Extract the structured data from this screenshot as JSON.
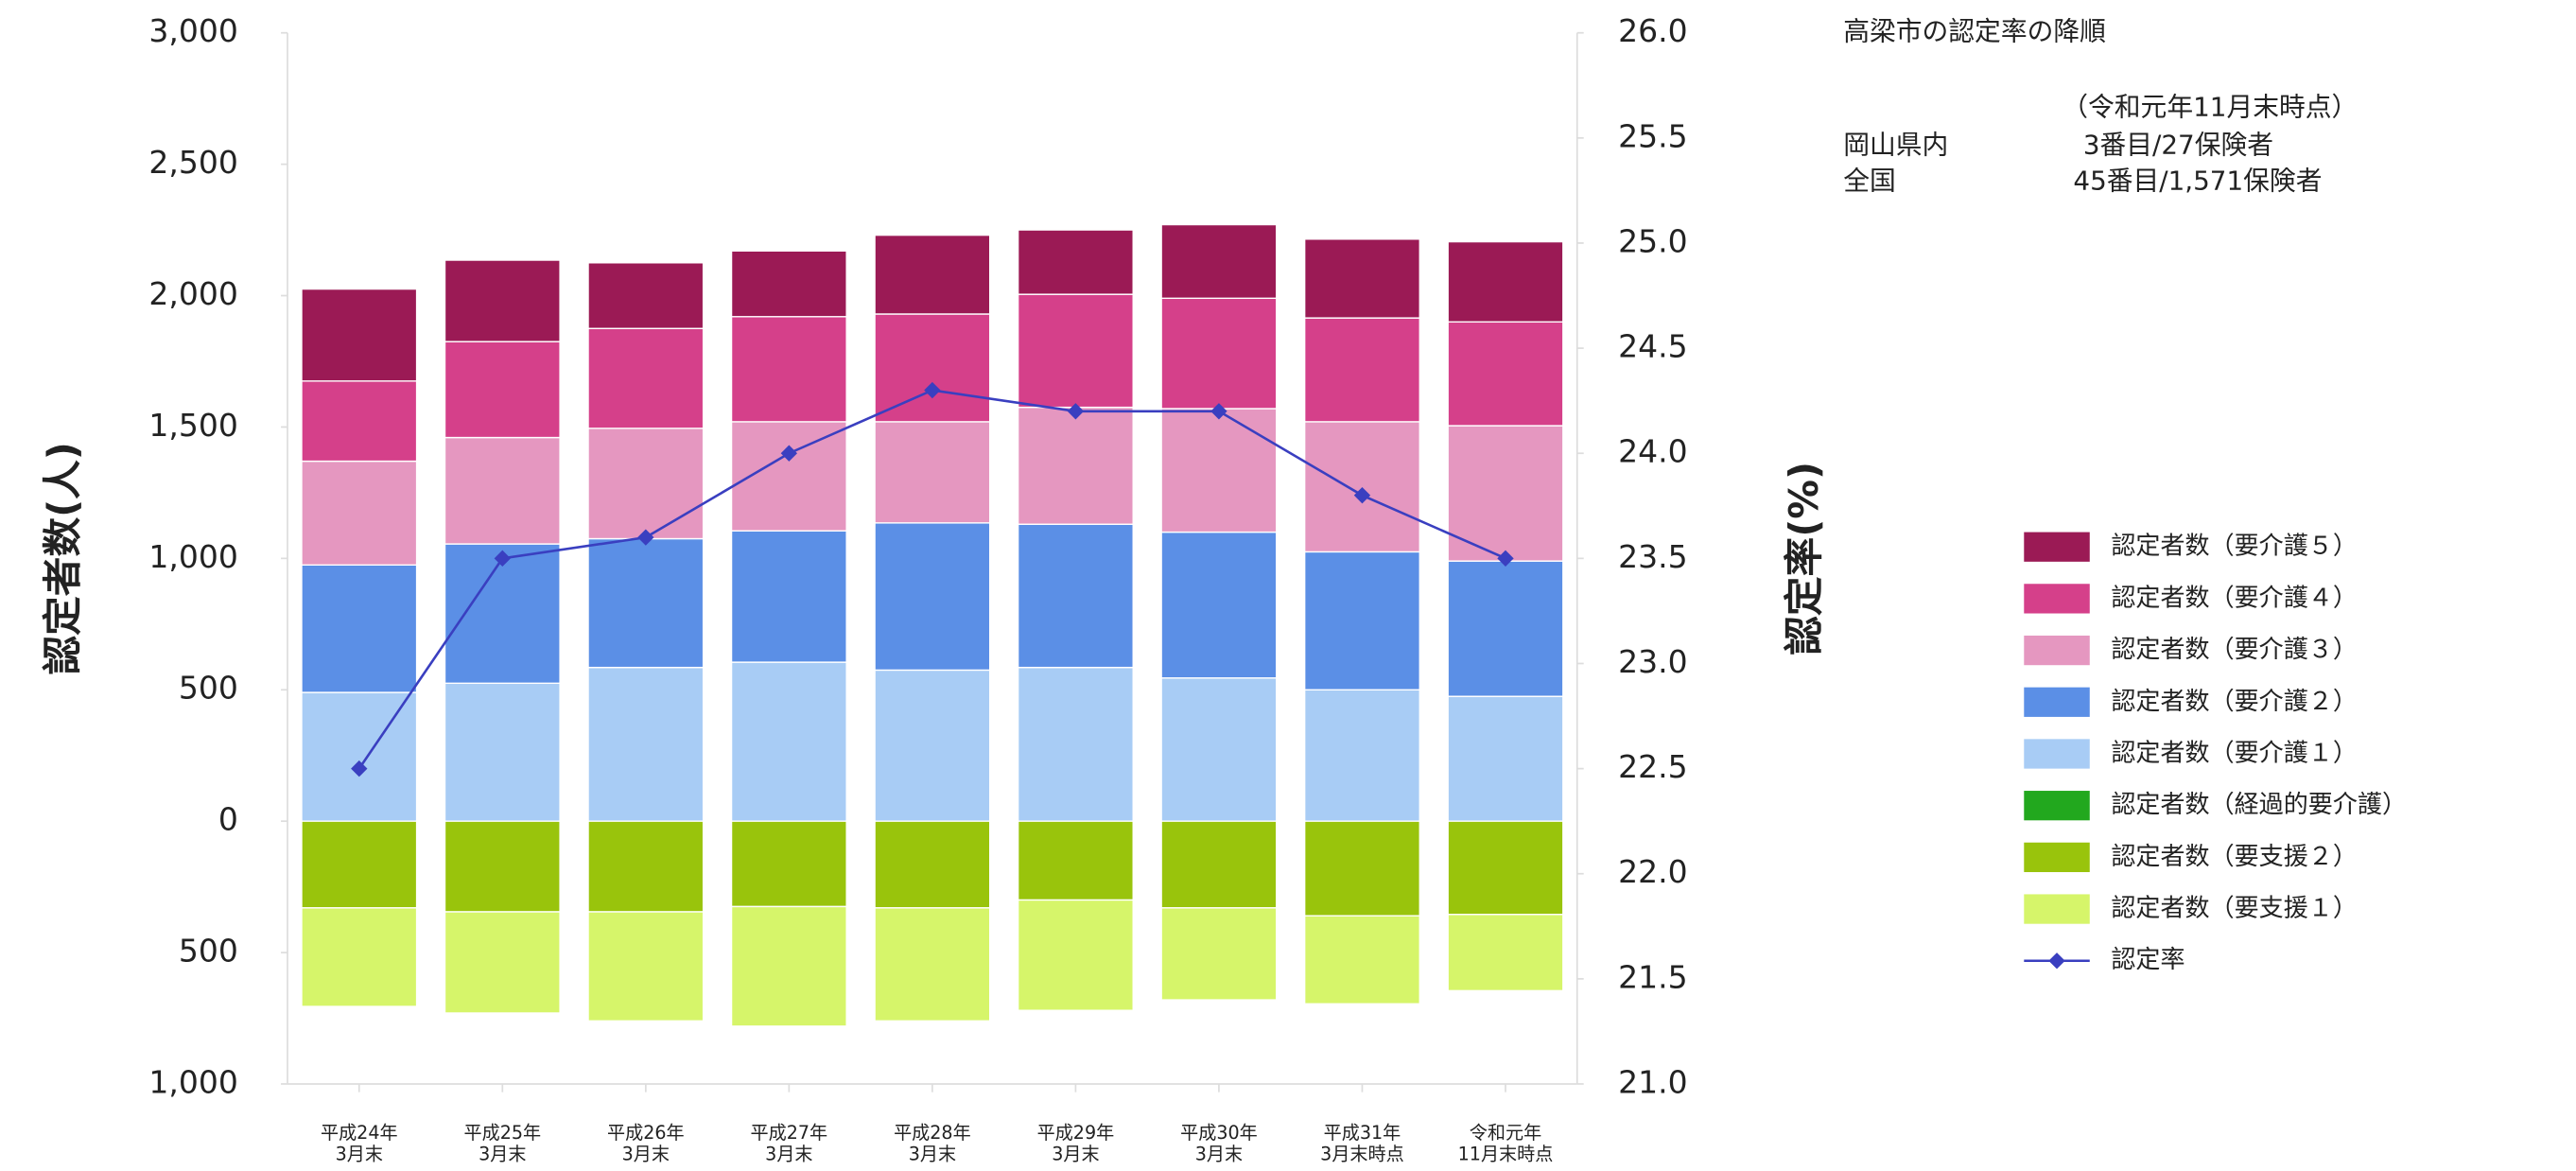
{
  "chart_data": {
    "type": "bar",
    "stacked": true,
    "title": "高梁市の認定率の降順",
    "annotations": [
      "（令和元年11月末時点）",
      "岡山県内",
      "3番目/27保険者",
      "全国",
      "45番目/1,571保険者"
    ],
    "y_label": "認定者数(人)",
    "y2_label": "認定率(%)",
    "categories": [
      [
        "平成24年",
        "3月末"
      ],
      [
        "平成25年",
        "3月末"
      ],
      [
        "平成26年",
        "3月末"
      ],
      [
        "平成27年",
        "3月末"
      ],
      [
        "平成28年",
        "3月末"
      ],
      [
        "平成29年",
        "3月末"
      ],
      [
        "平成30年",
        "3月末"
      ],
      [
        "平成31年",
        "3月末時点"
      ],
      [
        "令和元年",
        "11月末時点"
      ]
    ],
    "series": [
      {
        "name": "認定者数（要介護５）",
        "color": "#9b1a55",
        "values": [
          350,
          310,
          250,
          250,
          300,
          245,
          280,
          300,
          305
        ]
      },
      {
        "name": "認定者数（要介護４）",
        "color": "#d5408a",
        "values": [
          305,
          365,
          380,
          400,
          410,
          430,
          420,
          395,
          395
        ]
      },
      {
        "name": "認定者数（要介護３）",
        "color": "#e597c0",
        "values": [
          395,
          405,
          420,
          415,
          385,
          445,
          470,
          495,
          515
        ]
      },
      {
        "name": "認定者数（要介護２）",
        "color": "#5b8fe6",
        "values": [
          485,
          530,
          490,
          500,
          560,
          545,
          555,
          525,
          515
        ]
      },
      {
        "name": "認定者数（要介護１）",
        "color": "#a8ccf5",
        "values": [
          490,
          525,
          585,
          605,
          575,
          585,
          545,
          500,
          475
        ]
      },
      {
        "name": "認定者数（経過的要介護）",
        "color": "#22a81e",
        "values": [
          0,
          0,
          0,
          0,
          0,
          0,
          0,
          0,
          0
        ]
      },
      {
        "name": "認定者数（要支援２）",
        "color": "#99c40c",
        "values": [
          -330,
          -345,
          -345,
          -325,
          -330,
          -300,
          -330,
          -360,
          -355
        ]
      },
      {
        "name": "認定者数（要支援１）",
        "color": "#d6f56a",
        "values": [
          -375,
          -385,
          -415,
          -455,
          -430,
          -420,
          -350,
          -335,
          -290
        ]
      },
      {
        "name": "認定率",
        "color": "#3a3fc0",
        "type": "line",
        "axis": "y2",
        "values": [
          22.5,
          23.5,
          23.6,
          24.0,
          24.3,
          24.2,
          24.2,
          23.8,
          23.5
        ]
      }
    ],
    "ylim": [
      -1000,
      3000
    ],
    "yticks": [
      {
        "value": -1000,
        "label": "1,000"
      },
      {
        "value": -500,
        "label": "500"
      },
      0,
      500,
      {
        "value": 1000,
        "label": "1,000"
      },
      {
        "value": 1500,
        "label": "1,500"
      },
      {
        "value": 2000,
        "label": "2,000"
      },
      {
        "value": 2500,
        "label": "2,500"
      },
      {
        "value": 3000,
        "label": "3,000"
      }
    ],
    "y2lim": [
      21,
      26
    ],
    "y2ticks": [
      {
        "value": 21,
        "label": "21.0"
      },
      21.5,
      {
        "value": 22,
        "label": "22.0"
      },
      22.5,
      {
        "value": 23,
        "label": "23.0"
      },
      23.5,
      {
        "value": 24,
        "label": "24.0"
      },
      24.5,
      {
        "value": 25,
        "label": "25.0"
      },
      25.5,
      {
        "value": 26,
        "label": "26.0"
      }
    ],
    "grid": false,
    "legend": "right"
  }
}
